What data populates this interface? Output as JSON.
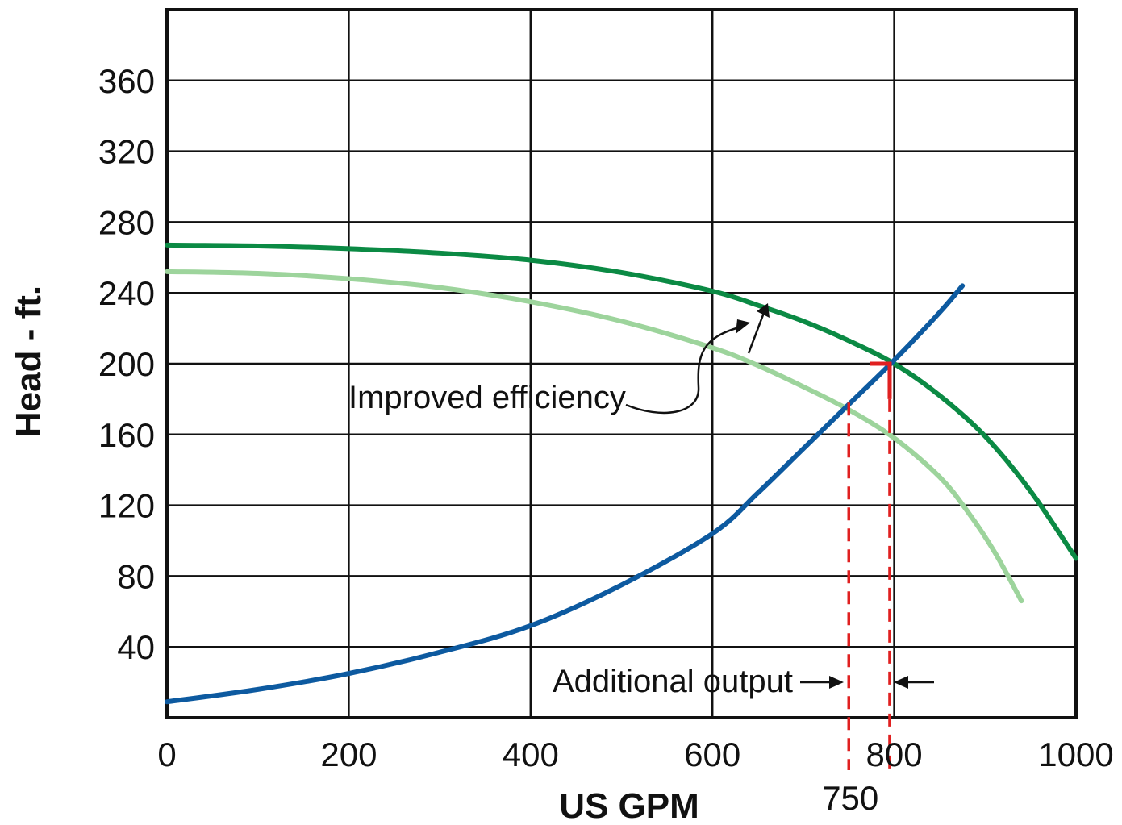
{
  "chart_data": {
    "type": "line",
    "xlabel": "US GPM",
    "ylabel": "Head - ft.",
    "xlim": [
      0,
      1000
    ],
    "ylim": [
      0,
      400
    ],
    "x_ticks": [
      0,
      200,
      400,
      600,
      800,
      1000
    ],
    "y_ticks": [
      40,
      80,
      120,
      160,
      200,
      240,
      280,
      320,
      360
    ],
    "extra_x_label": {
      "value": 750,
      "text": "750"
    },
    "grid": true,
    "colors": {
      "improved_pump": "#0b8a44",
      "original_pump": "#9dd49c",
      "system": "#0d5aa0",
      "operating_point": "#e02020"
    },
    "series": [
      {
        "key": "improved_pump",
        "x": [
          0,
          100,
          200,
          300,
          400,
          500,
          600,
          650,
          700,
          750,
          800,
          850,
          900,
          950,
          1000
        ],
        "y": [
          267,
          266.5,
          265,
          262.5,
          258.5,
          251.5,
          241,
          233,
          224,
          213,
          200,
          182,
          159,
          128,
          90
        ]
      },
      {
        "key": "original_pump",
        "x": [
          0,
          100,
          200,
          300,
          400,
          500,
          600,
          650,
          700,
          750,
          800,
          850,
          880,
          910,
          940
        ],
        "y": [
          252,
          251,
          248,
          243,
          235,
          224,
          209,
          199,
          187,
          174,
          158,
          136,
          117,
          94,
          66
        ]
      },
      {
        "key": "system",
        "x": [
          0,
          100,
          200,
          300,
          400,
          500,
          600,
          650,
          700,
          750,
          800,
          850,
          875
        ],
        "y": [
          9,
          16,
          25,
          37,
          52,
          75,
          104,
          127,
          152,
          177,
          202,
          229,
          244
        ]
      }
    ],
    "operating_point": {
      "x": 795,
      "y": 200
    },
    "additional_output": {
      "from": 750,
      "to": 795
    },
    "annotations": {
      "improved_efficiency": "Improved efficiency",
      "additional_output": "Additional output"
    }
  }
}
